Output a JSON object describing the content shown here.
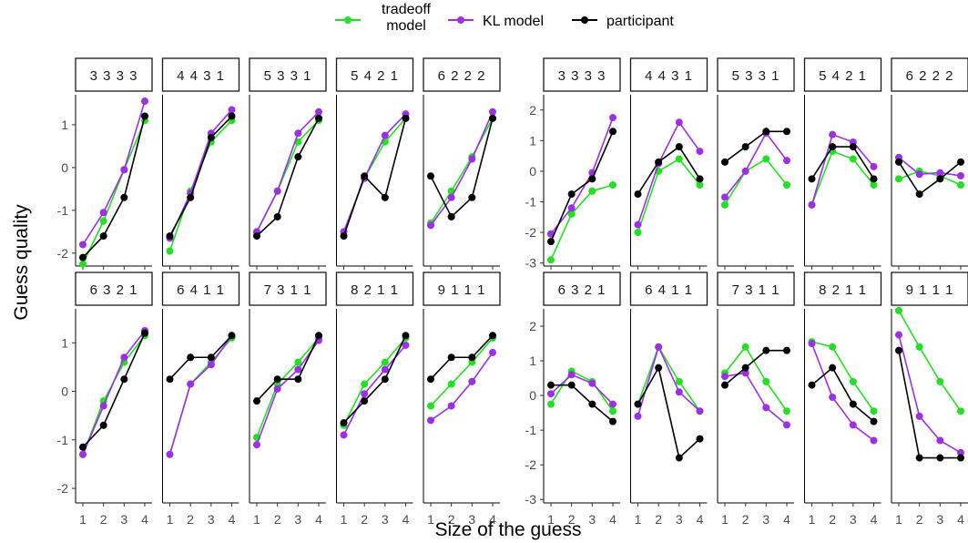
{
  "colors": {
    "tradeoff": "#22e022",
    "kl": "#9b30e6",
    "participant": "#000000"
  },
  "legend": [
    {
      "key": "tradeoff",
      "label_lines": [
        "tradeoff",
        "model"
      ]
    },
    {
      "key": "kl",
      "label_lines": [
        "KL model"
      ]
    },
    {
      "key": "participant",
      "label_lines": [
        "participant"
      ]
    }
  ],
  "chart_data": [
    {
      "type": "line",
      "xlabel": "Size of the guess",
      "ylabel": "Guess quality",
      "x": [
        1,
        2,
        3,
        4
      ],
      "ylim": [
        -2.3,
        1.7
      ],
      "yticks": [
        -2,
        -1,
        0,
        1
      ],
      "panels": [
        {
          "label": "3333",
          "series": [
            {
              "key": "tradeoff",
              "values": [
                -2.25,
                -1.25,
                -0.05,
                1.1
              ]
            },
            {
              "key": "kl",
              "values": [
                -1.8,
                -1.05,
                -0.05,
                1.55
              ]
            },
            {
              "key": "participant",
              "values": [
                -2.1,
                -1.6,
                -0.7,
                1.2
              ]
            }
          ]
        },
        {
          "label": "4431",
          "series": [
            {
              "key": "tradeoff",
              "values": [
                -1.95,
                -0.55,
                0.6,
                1.1
              ]
            },
            {
              "key": "kl",
              "values": [
                -1.65,
                -0.6,
                0.8,
                1.35
              ]
            },
            {
              "key": "participant",
              "values": [
                -1.6,
                -0.7,
                0.7,
                1.2
              ]
            }
          ]
        },
        {
          "label": "5331",
          "series": [
            {
              "key": "tradeoff",
              "values": [
                -1.5,
                -0.55,
                0.6,
                1.1
              ]
            },
            {
              "key": "kl",
              "values": [
                -1.5,
                -0.55,
                0.8,
                1.3
              ]
            },
            {
              "key": "participant",
              "values": [
                -1.6,
                -1.15,
                0.25,
                1.15
              ]
            }
          ]
        },
        {
          "label": "5421",
          "series": [
            {
              "key": "tradeoff",
              "values": [
                -1.5,
                -0.25,
                0.6,
                1.15
              ]
            },
            {
              "key": "kl",
              "values": [
                -1.5,
                -0.25,
                0.75,
                1.25
              ]
            },
            {
              "key": "participant",
              "values": [
                -1.6,
                -0.2,
                -0.7,
                1.15
              ]
            }
          ]
        },
        {
          "label": "6222",
          "series": [
            {
              "key": "tradeoff",
              "values": [
                -1.3,
                -0.55,
                0.25,
                1.15
              ]
            },
            {
              "key": "kl",
              "values": [
                -1.35,
                -0.7,
                0.2,
                1.3
              ]
            },
            {
              "key": "participant",
              "values": [
                -0.2,
                -1.15,
                -0.7,
                1.15
              ]
            }
          ]
        },
        {
          "label": "6321",
          "series": [
            {
              "key": "tradeoff",
              "values": [
                -1.3,
                -0.2,
                0.6,
                1.15
              ]
            },
            {
              "key": "kl",
              "values": [
                -1.3,
                -0.3,
                0.7,
                1.25
              ]
            },
            {
              "key": "participant",
              "values": [
                -1.15,
                -0.7,
                0.25,
                1.2
              ]
            }
          ]
        },
        {
          "label": "6411",
          "series": [
            {
              "key": "tradeoff",
              "values": [
                -1.3,
                0.15,
                0.6,
                1.1
              ]
            },
            {
              "key": "kl",
              "values": [
                -1.3,
                0.15,
                0.55,
                1.15
              ]
            },
            {
              "key": "participant",
              "values": [
                0.25,
                0.7,
                0.7,
                1.15
              ]
            }
          ]
        },
        {
          "label": "7311",
          "series": [
            {
              "key": "tradeoff",
              "values": [
                -0.95,
                0.15,
                0.6,
                1.1
              ]
            },
            {
              "key": "kl",
              "values": [
                -1.1,
                0.05,
                0.45,
                1.05
              ]
            },
            {
              "key": "participant",
              "values": [
                -0.2,
                0.25,
                0.25,
                1.15
              ]
            }
          ]
        },
        {
          "label": "8211",
          "series": [
            {
              "key": "tradeoff",
              "values": [
                -0.7,
                0.15,
                0.6,
                1.1
              ]
            },
            {
              "key": "kl",
              "values": [
                -0.9,
                -0.05,
                0.45,
                0.95
              ]
            },
            {
              "key": "participant",
              "values": [
                -0.65,
                -0.2,
                0.25,
                1.15
              ]
            }
          ]
        },
        {
          "label": "9111",
          "series": [
            {
              "key": "tradeoff",
              "values": [
                -0.3,
                0.15,
                0.6,
                1.1
              ]
            },
            {
              "key": "kl",
              "values": [
                -0.6,
                -0.3,
                0.2,
                0.8
              ]
            },
            {
              "key": "participant",
              "values": [
                0.25,
                0.7,
                0.7,
                1.15
              ]
            }
          ]
        }
      ]
    },
    {
      "type": "line",
      "xlabel": "Size of the guess",
      "ylabel": "Guess quality",
      "x": [
        1,
        2,
        3,
        4
      ],
      "ylim": [
        -3.1,
        2.5
      ],
      "yticks": [
        -3,
        -2,
        -1,
        0,
        1,
        2
      ],
      "panels": [
        {
          "label": "3333",
          "series": [
            {
              "key": "tradeoff",
              "values": [
                -2.9,
                -1.4,
                -0.65,
                -0.45
              ]
            },
            {
              "key": "kl",
              "values": [
                -2.05,
                -1.2,
                -0.05,
                1.75
              ]
            },
            {
              "key": "participant",
              "values": [
                -2.3,
                -0.75,
                -0.25,
                1.3
              ]
            }
          ]
        },
        {
          "label": "4431",
          "series": [
            {
              "key": "tradeoff",
              "values": [
                -2.0,
                0.0,
                0.4,
                -0.45
              ]
            },
            {
              "key": "kl",
              "values": [
                -1.75,
                0.25,
                1.6,
                0.65
              ]
            },
            {
              "key": "participant",
              "values": [
                -0.75,
                0.3,
                0.8,
                -0.25
              ]
            }
          ]
        },
        {
          "label": "5331",
          "series": [
            {
              "key": "tradeoff",
              "values": [
                -1.1,
                0.0,
                0.4,
                -0.45
              ]
            },
            {
              "key": "kl",
              "values": [
                -0.85,
                0.0,
                1.25,
                0.35
              ]
            },
            {
              "key": "participant",
              "values": [
                0.3,
                0.8,
                1.3,
                1.3
              ]
            }
          ]
        },
        {
          "label": "5421",
          "series": [
            {
              "key": "tradeoff",
              "values": [
                -1.1,
                0.65,
                0.4,
                -0.45
              ]
            },
            {
              "key": "kl",
              "values": [
                -1.1,
                1.2,
                0.95,
                0.15
              ]
            },
            {
              "key": "participant",
              "values": [
                -0.25,
                0.8,
                0.8,
                -0.25
              ]
            }
          ]
        },
        {
          "label": "6222",
          "series": [
            {
              "key": "tradeoff",
              "values": [
                -0.25,
                0.0,
                -0.15,
                -0.45
              ]
            },
            {
              "key": "kl",
              "values": [
                0.45,
                -0.1,
                -0.05,
                -0.15
              ]
            },
            {
              "key": "participant",
              "values": [
                0.3,
                -0.75,
                -0.25,
                0.3
              ]
            }
          ]
        },
        {
          "label": "6321",
          "series": [
            {
              "key": "tradeoff",
              "values": [
                -0.25,
                0.7,
                0.4,
                -0.45
              ]
            },
            {
              "key": "kl",
              "values": [
                0.05,
                0.6,
                0.35,
                -0.25
              ]
            },
            {
              "key": "participant",
              "values": [
                0.3,
                0.3,
                -0.25,
                -0.75
              ]
            }
          ]
        },
        {
          "label": "6411",
          "series": [
            {
              "key": "tradeoff",
              "values": [
                -0.25,
                1.4,
                0.4,
                -0.45
              ]
            },
            {
              "key": "kl",
              "values": [
                -0.6,
                1.4,
                0.1,
                -0.45
              ]
            },
            {
              "key": "participant",
              "values": [
                -0.25,
                0.8,
                -1.8,
                -1.25
              ]
            }
          ]
        },
        {
          "label": "7311",
          "series": [
            {
              "key": "tradeoff",
              "values": [
                0.65,
                1.4,
                0.4,
                -0.45
              ]
            },
            {
              "key": "kl",
              "values": [
                0.55,
                0.65,
                -0.35,
                -0.85
              ]
            },
            {
              "key": "participant",
              "values": [
                0.3,
                0.8,
                1.3,
                1.3
              ]
            }
          ]
        },
        {
          "label": "8211",
          "series": [
            {
              "key": "tradeoff",
              "values": [
                1.55,
                1.4,
                0.4,
                -0.45
              ]
            },
            {
              "key": "kl",
              "values": [
                1.5,
                -0.05,
                -0.85,
                -1.3
              ]
            },
            {
              "key": "participant",
              "values": [
                0.3,
                0.8,
                -0.25,
                -0.75
              ]
            }
          ]
        },
        {
          "label": "9111",
          "series": [
            {
              "key": "tradeoff",
              "values": [
                2.45,
                1.4,
                0.4,
                -0.45
              ]
            },
            {
              "key": "kl",
              "values": [
                1.75,
                -0.6,
                -1.3,
                -1.65
              ]
            },
            {
              "key": "participant",
              "values": [
                1.3,
                -1.8,
                -1.8,
                -1.8
              ]
            }
          ]
        }
      ]
    }
  ]
}
